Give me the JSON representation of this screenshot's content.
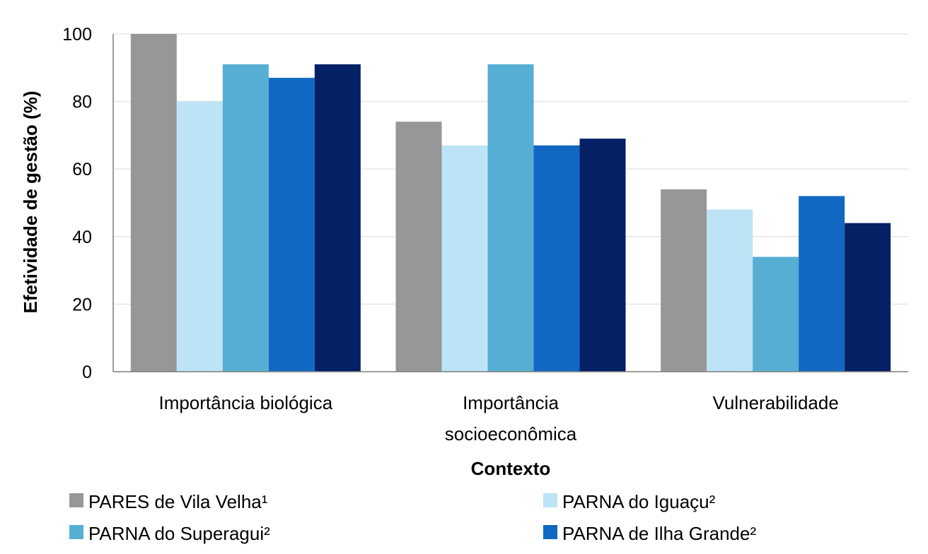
{
  "chart_data": {
    "type": "bar",
    "title": "",
    "xlabel": "Contexto",
    "ylabel": "Efetividade de gestão (%)",
    "ylim": [
      0,
      100
    ],
    "yticks": [
      0,
      20,
      40,
      60,
      80,
      100
    ],
    "grid": true,
    "legend_position": "bottom",
    "categories": [
      [
        "Importância biológica"
      ],
      [
        "Importância",
        "socioeconômica"
      ],
      [
        "Vulnerabilidade"
      ]
    ],
    "series": [
      {
        "name": "PARES de Vila Velha¹",
        "color": "#979797",
        "values": [
          100,
          74,
          54
        ]
      },
      {
        "name": "PARNA do Iguaçu²",
        "color": "#bde3f7",
        "values": [
          80,
          67,
          48
        ]
      },
      {
        "name": "PARNA do Superagui²",
        "color": "#56aed4",
        "values": [
          91,
          91,
          34
        ]
      },
      {
        "name": "PARNA de Ilha Grande²",
        "color": "#1168c2",
        "values": [
          87,
          67,
          52
        ]
      },
      {
        "name": "",
        "color": "#062066",
        "values": [
          91,
          69,
          44
        ]
      }
    ]
  }
}
